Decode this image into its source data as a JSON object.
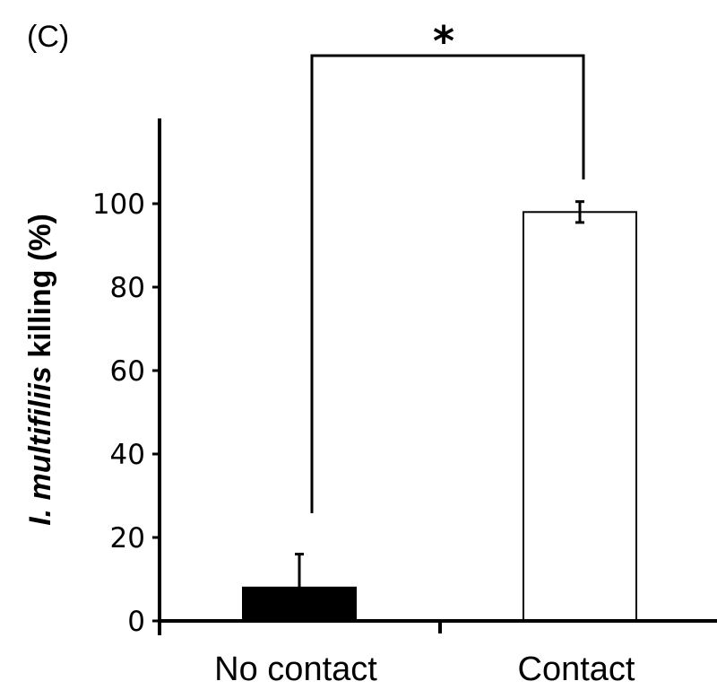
{
  "panel_label": "(C)",
  "chart_data": {
    "type": "bar",
    "categories": [
      "No contact",
      "Contact"
    ],
    "values": [
      8,
      98
    ],
    "errors": [
      8,
      2.5
    ],
    "colors": [
      "#000000",
      "#ffffff"
    ],
    "ylabel_italic": "I. multifiliis",
    "ylabel_rest": " killing (%)",
    "yticks": [
      0,
      20,
      40,
      60,
      80,
      100
    ],
    "ylim": [
      0,
      120
    ],
    "significance": "*"
  }
}
